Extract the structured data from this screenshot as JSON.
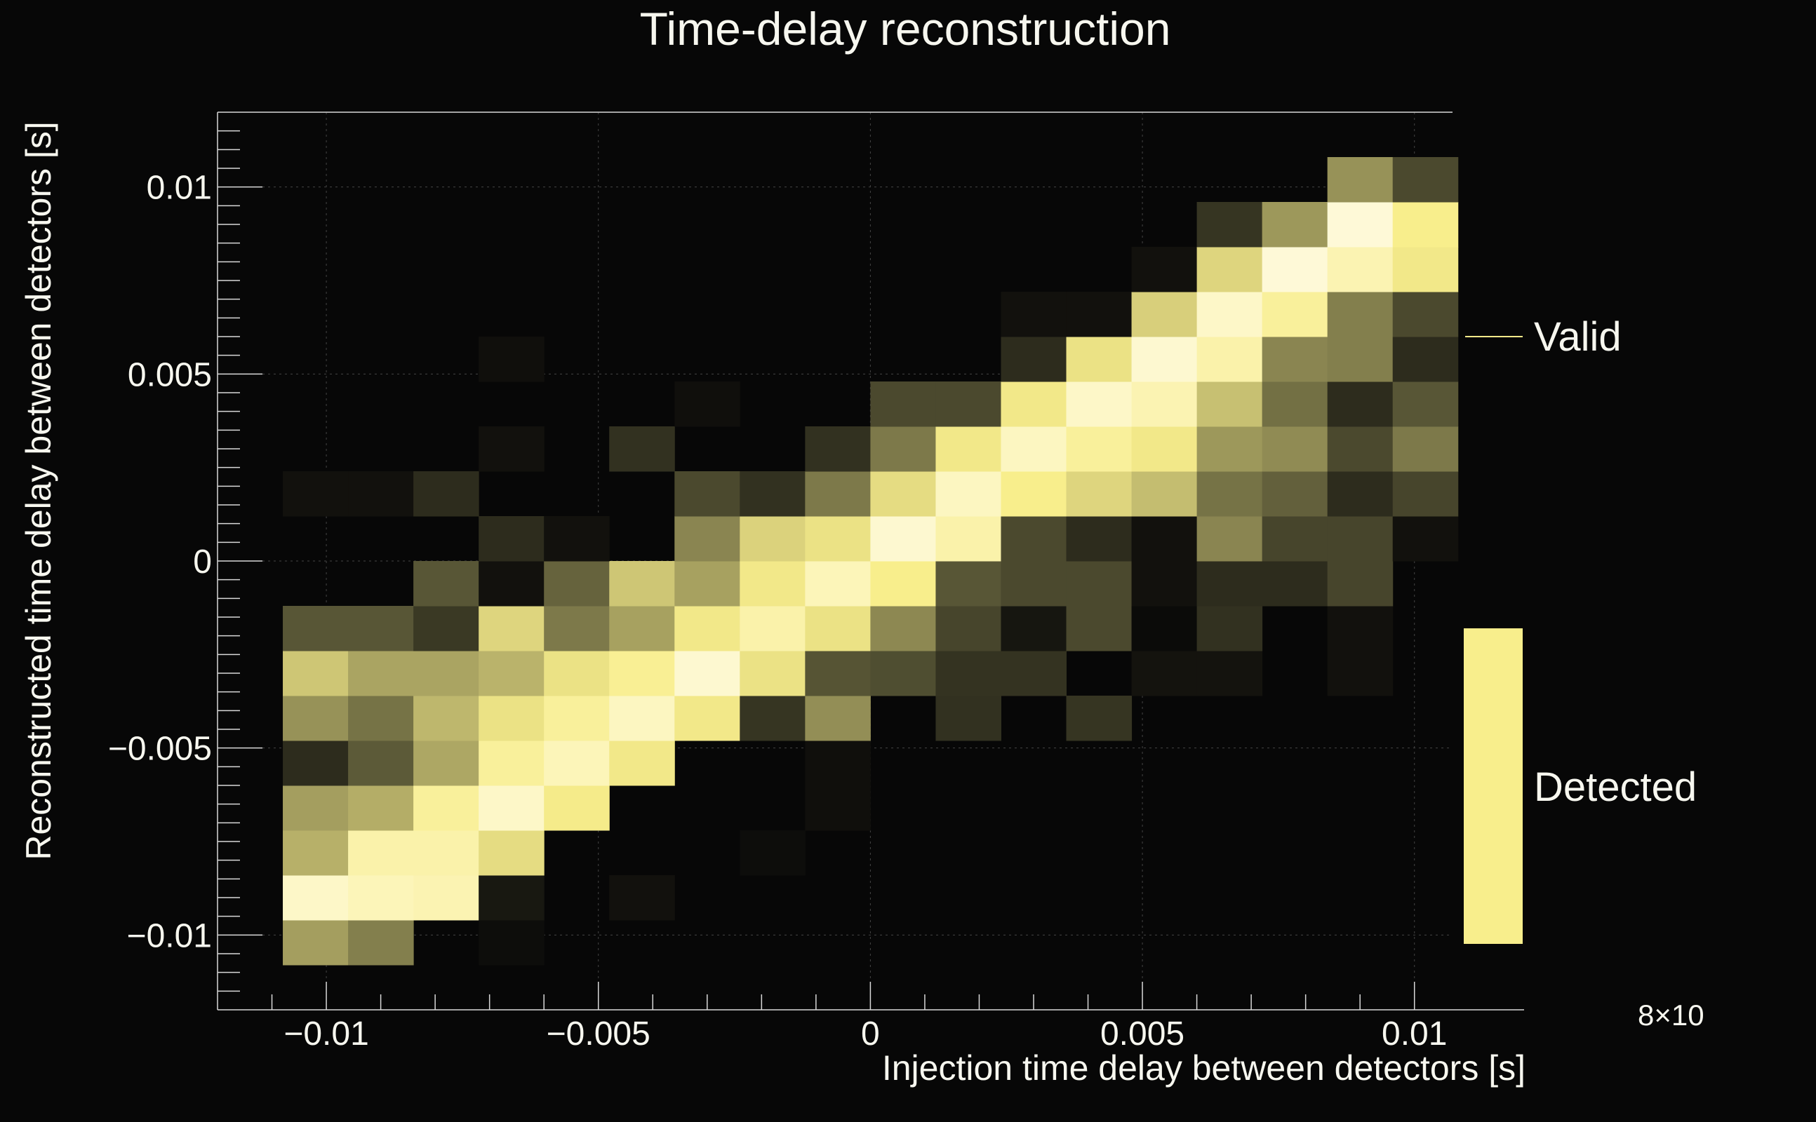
{
  "chart_data": {
    "type": "heatmap",
    "title": "Time-delay  reconstruction",
    "xlabel": "Injection time delay between detectors [s]",
    "ylabel": "Reconstructed time delay between detectors [s]",
    "xlim": [
      -0.012,
      0.0107
    ],
    "ylim": [
      -0.012,
      0.012
    ],
    "x_ticks": [
      {
        "value": -0.01,
        "label": "−0.01"
      },
      {
        "value": -0.005,
        "label": "−0.005"
      },
      {
        "value": 0,
        "label": "0"
      },
      {
        "value": 0.005,
        "label": "0.005"
      },
      {
        "value": 0.01,
        "label": "0.01"
      }
    ],
    "y_ticks": [
      {
        "value": 0.01,
        "label": "0.01"
      },
      {
        "value": 0.005,
        "label": "0.005"
      },
      {
        "value": 0,
        "label": "0"
      },
      {
        "value": -0.005,
        "label": "−0.005"
      },
      {
        "value": -0.01,
        "label": "−0.01"
      }
    ],
    "grid": true,
    "x_bins": {
      "start": -0.0108,
      "width": 0.0012,
      "count": 18
    },
    "y_bins": {
      "start": -0.0108,
      "width": 0.0012,
      "count": 18
    },
    "value_note": "values are relative intensity 0-100 read from the color scale; row index 0 is the lowest y bin",
    "values": [
      [
        62,
        52,
        0,
        3,
        0,
        0,
        0,
        0,
        0,
        0,
        0,
        0,
        0,
        0,
        0,
        0,
        0,
        0
      ],
      [
        96,
        94,
        93,
        8,
        0,
        5,
        0,
        0,
        0,
        0,
        0,
        0,
        0,
        0,
        0,
        0,
        0,
        0
      ],
      [
        68,
        92,
        92,
        82,
        0,
        0,
        0,
        3,
        0,
        0,
        0,
        0,
        0,
        0,
        0,
        0,
        0,
        0
      ],
      [
        62,
        67,
        90,
        96,
        87,
        0,
        0,
        0,
        4,
        0,
        0,
        0,
        0,
        0,
        0,
        0,
        0,
        0
      ],
      [
        18,
        40,
        65,
        90,
        94,
        86,
        0,
        0,
        4,
        0,
        0,
        0,
        0,
        0,
        0,
        0,
        0,
        0
      ],
      [
        58,
        48,
        70,
        84,
        90,
        95,
        86,
        22,
        57,
        0,
        20,
        0,
        22,
        0,
        0,
        0,
        0,
        0
      ],
      [
        75,
        64,
        64,
        69,
        84,
        89,
        97,
        84,
        37,
        34,
        21,
        21,
        0,
        6,
        6,
        0,
        5,
        0
      ],
      [
        38,
        38,
        24,
        80,
        50,
        63,
        86,
        92,
        84,
        55,
        30,
        7,
        32,
        2,
        20,
        0,
        5,
        0
      ],
      [
        0,
        0,
        38,
        5,
        43,
        75,
        63,
        86,
        94,
        88,
        38,
        32,
        32,
        5,
        18,
        18,
        30,
        0
      ],
      [
        0,
        0,
        0,
        18,
        5,
        0,
        54,
        79,
        84,
        97,
        92,
        32,
        18,
        5,
        54,
        30,
        30,
        5
      ],
      [
        5,
        5,
        18,
        0,
        0,
        0,
        32,
        20,
        50,
        82,
        95,
        88,
        80,
        72,
        48,
        42,
        18,
        30
      ],
      [
        0,
        0,
        0,
        5,
        0,
        20,
        0,
        0,
        20,
        50,
        86,
        95,
        90,
        86,
        60,
        56,
        32,
        50
      ],
      [
        0,
        0,
        0,
        0,
        0,
        0,
        4,
        0,
        0,
        32,
        32,
        86,
        96,
        93,
        73,
        47,
        18,
        38
      ],
      [
        0,
        0,
        0,
        4,
        0,
        0,
        0,
        0,
        0,
        0,
        0,
        18,
        84,
        97,
        92,
        54,
        52,
        18
      ],
      [
        0,
        0,
        0,
        0,
        0,
        0,
        0,
        0,
        0,
        0,
        0,
        5,
        5,
        78,
        96,
        90,
        52,
        32
      ],
      [
        0,
        0,
        0,
        0,
        0,
        0,
        0,
        0,
        0,
        0,
        0,
        0,
        0,
        5,
        80,
        98,
        93,
        86
      ],
      [
        0,
        0,
        0,
        0,
        0,
        0,
        0,
        0,
        0,
        0,
        0,
        0,
        0,
        0,
        22,
        60,
        98,
        88
      ],
      [
        0,
        0,
        0,
        0,
        0,
        0,
        0,
        0,
        0,
        0,
        0,
        0,
        0,
        0,
        0,
        0,
        58,
        32
      ]
    ],
    "legend": {
      "placement": "right",
      "entries": [
        {
          "label": "Valid",
          "style": "line",
          "color": "#f5ea8a"
        },
        {
          "label": "Detected",
          "style": "box",
          "color": "#f8ee8c"
        }
      ]
    },
    "colors": {
      "background": "#070707",
      "cell_max": "#fffbe6",
      "cell_mid": "#f8ee8c",
      "cell_low": "#5c5a38",
      "axis": "#d8d8d8",
      "grid": "#444444"
    },
    "corner_label": "8×10"
  }
}
